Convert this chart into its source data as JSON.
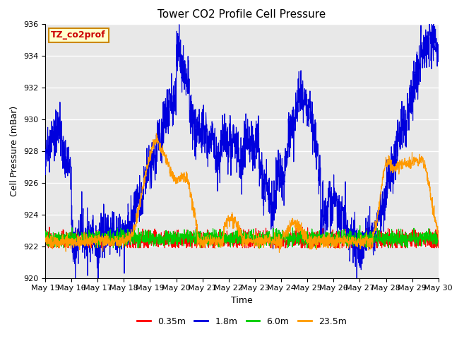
{
  "title": "Tower CO2 Profile Cell Pressure",
  "xlabel": "Time",
  "ylabel": "Cell Pressure (mBar)",
  "ylim": [
    920,
    936
  ],
  "xlim": [
    0,
    15
  ],
  "yticks": [
    920,
    922,
    924,
    926,
    928,
    930,
    932,
    934,
    936
  ],
  "xtick_labels": [
    "May 15",
    "May 16",
    "May 17",
    "May 18",
    "May 19",
    "May 20",
    "May 21",
    "May 22",
    "May 23",
    "May 24",
    "May 25",
    "May 26",
    "May 27",
    "May 28",
    "May 29",
    "May 30"
  ],
  "legend_labels": [
    "0.35m",
    "1.8m",
    "6.0m",
    "23.5m"
  ],
  "legend_colors": [
    "#ff0000",
    "#0000dd",
    "#00cc00",
    "#ff9900"
  ],
  "annotation_text": "TZ_co2prof",
  "annotation_bg": "#ffffcc",
  "annotation_border": "#cc8800",
  "background_color": "#e8e8e8",
  "grid_color": "#ffffff",
  "title_fontsize": 11,
  "axis_fontsize": 9,
  "tick_fontsize": 8,
  "line_width": 0.8
}
